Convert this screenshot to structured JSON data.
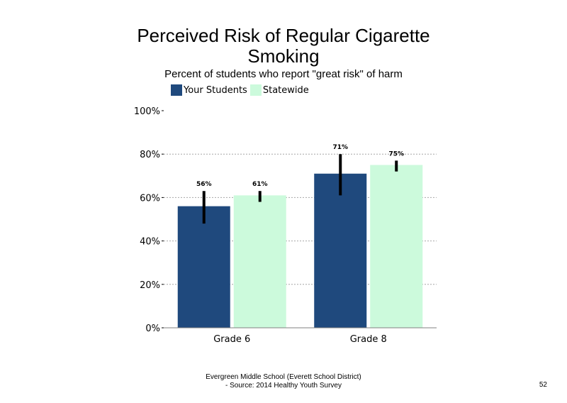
{
  "slide": {
    "footer_line1": "Evergreen Middle School (Everett School District)",
    "footer_line2": "- Source: 2014 Healthy  Youth Survey",
    "page_number": "52"
  },
  "chart_data": {
    "type": "bar",
    "title": "Perceived Risk of Regular Cigarette Smoking",
    "subtitle": "Percent of students who report \"great risk\" of harm",
    "categories": [
      "Grade 6",
      "Grade 8"
    ],
    "series": [
      {
        "name": "Your Students",
        "color": "#1f497d",
        "values": [
          56,
          71
        ],
        "labels": [
          "56%",
          "71%"
        ],
        "error_low": [
          48,
          61
        ],
        "error_high": [
          63,
          80
        ]
      },
      {
        "name": "Statewide",
        "color": "#ccfadc",
        "values": [
          61,
          75
        ],
        "labels": [
          "61%",
          "75%"
        ],
        "error_low": [
          58,
          72
        ],
        "error_high": [
          63,
          77
        ]
      }
    ],
    "ylim": [
      0,
      100
    ],
    "yticks": [
      0,
      20,
      40,
      60,
      80,
      100
    ],
    "ytick_labels": [
      "0%",
      "20%",
      "40%",
      "60%",
      "80%",
      "100%"
    ],
    "gridlines": "dashed",
    "legend_position": "top-left",
    "xlabel": "",
    "ylabel": ""
  }
}
